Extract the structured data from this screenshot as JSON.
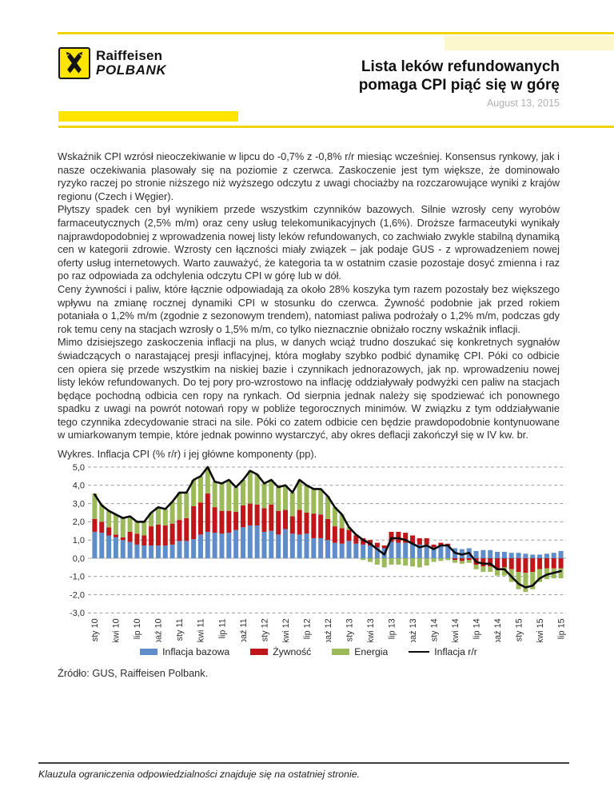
{
  "header": {
    "logo_line1": "Raiffeisen",
    "logo_line2": "POLBANK",
    "title_line1": "Lista leków refundowanych",
    "title_line2": "pomaga CPI piąć się w górę",
    "date": "August 13, 2015",
    "accent_yellow": "#ffe400"
  },
  "article": {
    "paragraphs": [
      "Wskaźnik CPI wzrósł nieoczekiwanie w lipcu do -0,7% z -0,8% r/r miesiąc wcześniej. Konsensus rynkowy, jak i nasze oczekiwania plasowały się na poziomie z czerwca. Zaskoczenie jest tym większe, że dominowało ryzyko raczej po stronie niższego niż wyższego odczytu z uwagi chociażby na rozczarowujące wyniki z krajów regionu (Czech i Węgier).",
      "Płytszy spadek cen był wynikiem przede wszystkim czynników bazowych. Silnie wzrosły ceny wyrobów farmaceutycznych (2,5% m/m) oraz ceny usług telekomunikacyjnych (1,6%). Droższe farmaceutyki wynikały najprawdopodobniej z wprowadzenia nowej listy leków refundowanych, co zachwiało zwykle stabilną dynamiką cen w kategorii zdrowie. Wzrosty cen łączności miały związek – jak podaje GUS - z wprowadzeniem nowej oferty usług internetowych. Warto zauważyć, że kategoria ta w ostatnim czasie pozostaje dosyć zmienna i raz po raz odpowiada za odchylenia odczytu CPI w górę lub w dół.",
      "Ceny żywności i paliw, które łącznie odpowiadają za około 28% koszyka tym razem pozostały bez większego wpływu na zmianę rocznej dynamiki CPI w stosunku do czerwca. Żywność podobnie jak przed rokiem potaniała o 1,2% m/m (zgodnie z sezonowym trendem), natomiast paliwa podrożały o 1,2% m/m, podczas gdy rok temu ceny na stacjach wzrosły o 1,5% m/m, co tylko nieznacznie obniżało roczny wskaźnik inflacji.",
      "Mimo dzisiejszego zaskoczenia inflacji na plus, w danych wciąż trudno doszukać się konkretnych sygnałów świadczących o narastającej presji inflacyjnej, która mogłaby szybko podbić dynamikę CPI. Póki co odbicie cen opiera się przede wszystkim na niskiej bazie i czynnikach jednorazowych, jak np. wprowadzeniu nowej listy leków refundowanych. Do tej pory pro-wzrostowo na inflację oddziaływały podwyżki cen paliw na stacjach będące pochodną odbicia cen ropy na rynkach. Od sierpnia jednak należy się spodziewać ich ponownego spadku z uwagi na powrót notowań ropy w pobliże tegorocznych minimów. W związku z tym oddziaływanie tego czynnika zdecydowanie straci na sile. Póki co zatem odbicie cen będzie prawdopodobnie kontynuowane w umiarkowanym tempie, które jednak powinno wystarczyć, aby okres deflacji zakończył się w IV kw. br."
    ],
    "source": "Źródło: GUS, Raiffeisen Polbank."
  },
  "chart_data": {
    "type": "bar",
    "stacked": true,
    "title": "Wykres. Inflacja CPI (% r/r) i jej główne komponenty (pp).",
    "ylim": [
      -3,
      5
    ],
    "ytick_values": [
      5,
      4,
      3,
      2,
      1,
      0,
      -1,
      -2,
      -3
    ],
    "ytick_labels": [
      "5,0",
      "4,0",
      "3,0",
      "2,0",
      "1,0",
      "0,0",
      "-1,0",
      "-2,0",
      "-3,0"
    ],
    "grid": "dashed horizontal",
    "legend_position": "bottom",
    "x_label_every": 3,
    "categories": [
      "sty 10",
      "lut 10",
      "mar 10",
      "kwi 10",
      "maj 10",
      "cze 10",
      "lip 10",
      "sie 10",
      "wrz 10",
      "paź 10",
      "lis 10",
      "gru 10",
      "sty 11",
      "lut 11",
      "mar 11",
      "kwi 11",
      "maj 11",
      "cze 11",
      "lip 11",
      "sie 11",
      "wrz 11",
      "paź 11",
      "lis 11",
      "gru 11",
      "sty 12",
      "lut 12",
      "mar 12",
      "kwi 12",
      "maj 12",
      "cze 12",
      "lip 12",
      "sie 12",
      "wrz 12",
      "paź 12",
      "lis 12",
      "gru 12",
      "sty 13",
      "lut 13",
      "mar 13",
      "kwi 13",
      "maj 13",
      "cze 13",
      "lip 13",
      "sie 13",
      "wrz 13",
      "paź 13",
      "lis 13",
      "gru 13",
      "sty 14",
      "lut 14",
      "mar 14",
      "kwi 14",
      "maj 14",
      "cze 14",
      "lip 14",
      "sie 14",
      "wrz 14",
      "paź 14",
      "lis 14",
      "gru 14",
      "sty 15",
      "lut 15",
      "mar 15",
      "kwi 15",
      "maj 15",
      "cze 15",
      "lip 15"
    ],
    "series": [
      {
        "name": "Inflacja bazowa",
        "color": "#5f8dc9",
        "values": [
          1.45,
          1.4,
          1.25,
          1.15,
          1.0,
          0.9,
          0.75,
          0.7,
          0.7,
          0.7,
          0.7,
          0.75,
          0.95,
          0.95,
          1.05,
          1.3,
          1.45,
          1.4,
          1.35,
          1.4,
          1.55,
          1.7,
          1.8,
          1.8,
          1.45,
          1.5,
          1.3,
          1.6,
          1.35,
          1.3,
          1.35,
          1.1,
          1.1,
          1.0,
          0.85,
          0.8,
          0.95,
          0.8,
          0.75,
          0.7,
          0.6,
          0.55,
          0.9,
          0.85,
          0.85,
          0.8,
          0.75,
          0.75,
          0.6,
          0.7,
          0.7,
          0.55,
          0.5,
          0.55,
          0.4,
          0.45,
          0.45,
          0.35,
          0.35,
          0.3,
          0.3,
          0.25,
          0.2,
          0.2,
          0.25,
          0.3,
          0.4
        ]
      },
      {
        "name": "Żywność",
        "color": "#c01519",
        "values": [
          0.7,
          0.6,
          0.45,
          0.15,
          0.15,
          0.55,
          0.6,
          0.55,
          1.05,
          1.15,
          1.1,
          1.15,
          1.15,
          1.25,
          1.8,
          1.75,
          2.1,
          1.4,
          1.25,
          1.2,
          1.0,
          1.2,
          1.2,
          1.15,
          1.3,
          1.45,
          1.3,
          1.05,
          0.95,
          1.35,
          1.15,
          1.35,
          1.3,
          1.15,
          0.9,
          0.85,
          0.6,
          0.45,
          0.35,
          0.3,
          0.25,
          0.15,
          0.55,
          0.6,
          0.55,
          0.45,
          0.35,
          0.35,
          0.15,
          0.15,
          0.1,
          -0.1,
          -0.15,
          -0.1,
          -0.35,
          -0.45,
          -0.45,
          -0.55,
          -0.5,
          -0.6,
          -0.75,
          -0.8,
          -0.75,
          -0.6,
          -0.55,
          -0.55,
          -0.55
        ]
      },
      {
        "name": "Energia",
        "color": "#9cba5a",
        "values": [
          1.4,
          0.95,
          0.9,
          1.1,
          1.05,
          0.85,
          0.65,
          0.8,
          0.75,
          0.95,
          0.9,
          1.2,
          1.5,
          1.4,
          1.45,
          1.45,
          1.4,
          1.4,
          1.5,
          1.7,
          1.35,
          1.4,
          1.8,
          1.65,
          1.35,
          1.35,
          1.3,
          1.35,
          1.3,
          1.65,
          1.5,
          1.35,
          1.4,
          1.25,
          1.05,
          0.75,
          0.15,
          0.05,
          -0.1,
          -0.2,
          -0.35,
          -0.5,
          -0.35,
          -0.35,
          -0.4,
          -0.45,
          -0.5,
          -0.4,
          -0.2,
          -0.15,
          -0.1,
          -0.15,
          -0.15,
          -0.15,
          -0.25,
          -0.3,
          -0.3,
          -0.4,
          -0.45,
          -0.7,
          -0.95,
          -1.05,
          -0.95,
          -0.7,
          -0.6,
          -0.55,
          -0.55
        ]
      }
    ],
    "line": {
      "name": "Inflacja r/r",
      "color": "#0d0d0d",
      "values": [
        3.5,
        2.9,
        2.6,
        2.4,
        2.2,
        2.3,
        2.0,
        2.0,
        2.5,
        2.8,
        2.7,
        3.1,
        3.6,
        3.6,
        4.3,
        4.5,
        5.0,
        4.2,
        4.1,
        4.3,
        3.9,
        4.3,
        4.8,
        4.6,
        4.1,
        4.3,
        3.9,
        4.0,
        3.6,
        4.3,
        4.0,
        3.8,
        3.8,
        3.4,
        2.8,
        2.4,
        1.7,
        1.3,
        1.0,
        0.8,
        0.5,
        0.2,
        1.1,
        1.1,
        1.0,
        0.8,
        0.6,
        0.7,
        0.5,
        0.7,
        0.7,
        0.3,
        0.2,
        0.3,
        -0.2,
        -0.3,
        -0.3,
        -0.6,
        -0.6,
        -1.0,
        -1.4,
        -1.6,
        -1.5,
        -1.1,
        -0.9,
        -0.8,
        -0.7
      ]
    }
  },
  "footer": {
    "disclaimer": "Klauzula ograniczenia odpowiedzialności znajduje się na ostatniej stronie."
  }
}
